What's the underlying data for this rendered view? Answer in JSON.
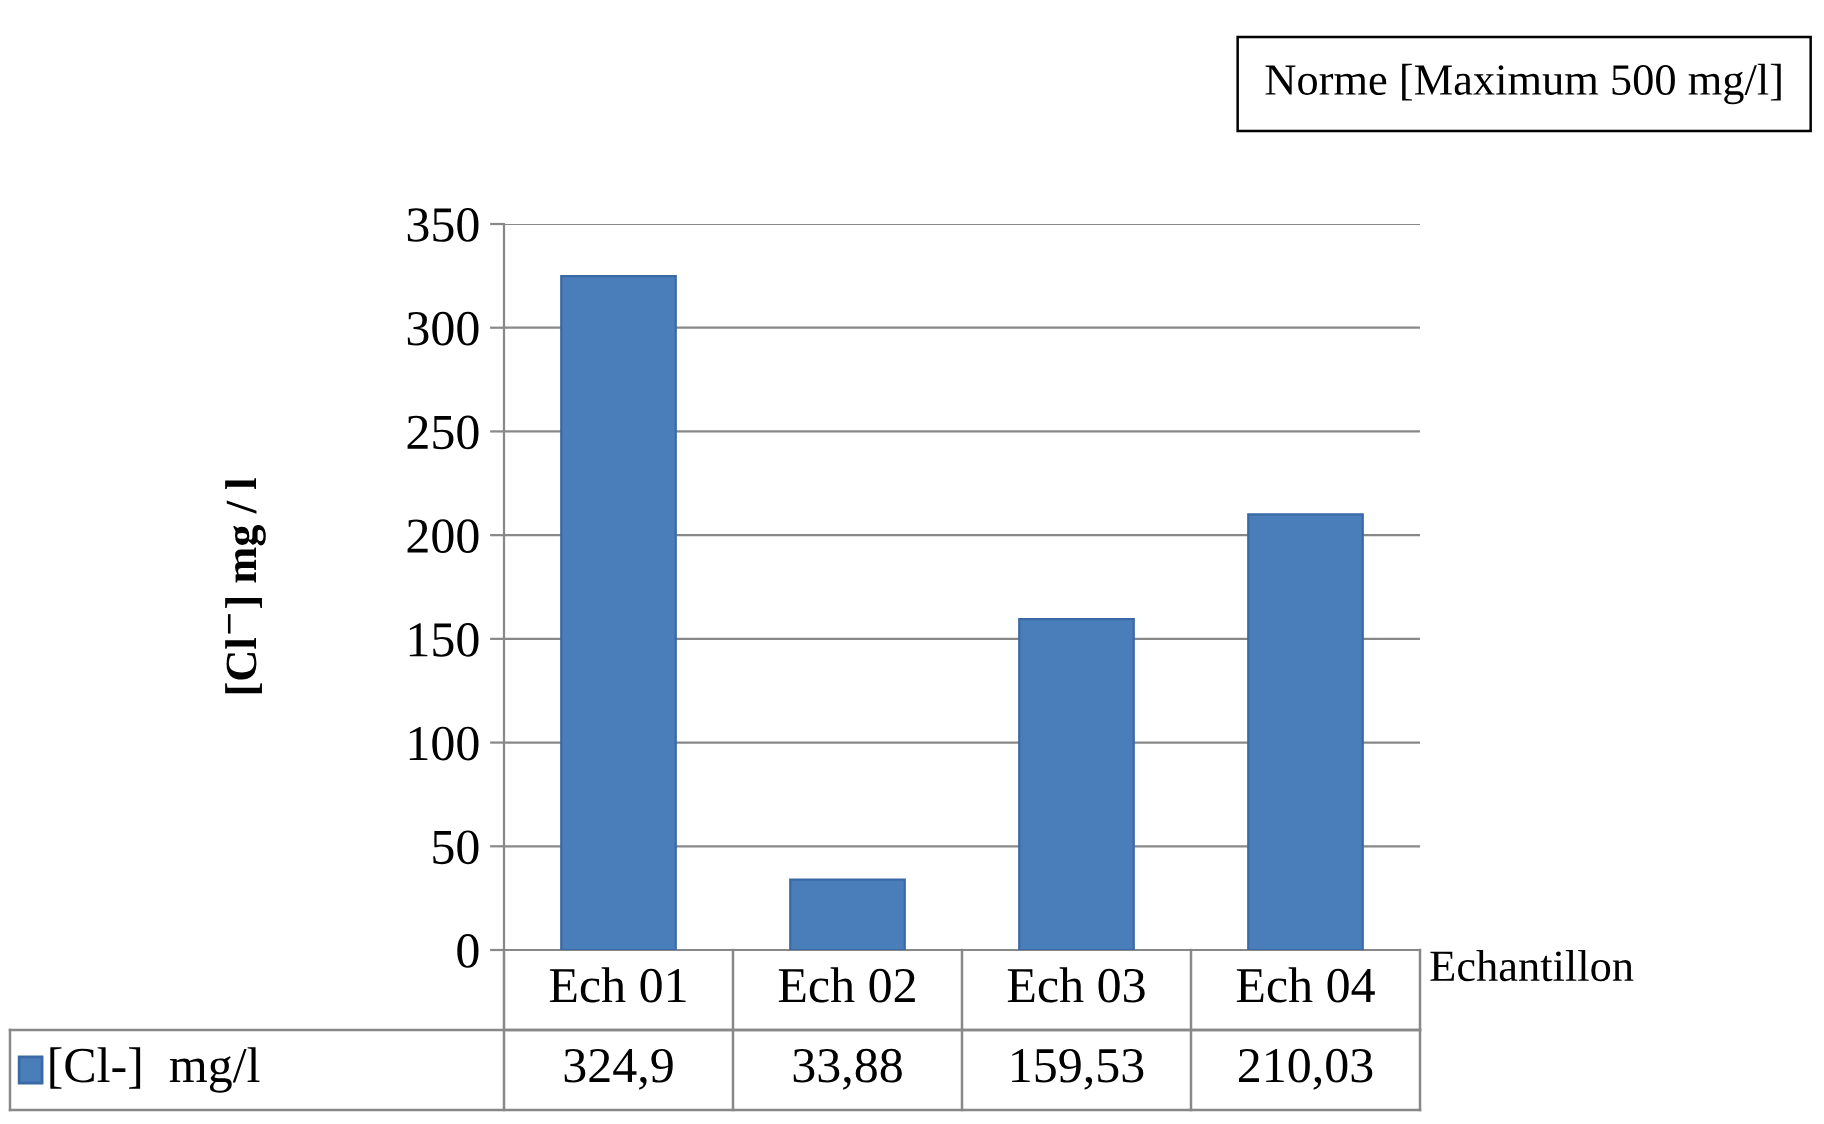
{
  "chart_data": {
    "type": "bar",
    "ylabel": "[Cl$^{−}$] mg / l",
    "xlabel": "Echantillon",
    "categories": [
      "Ech 01",
      "Ech 02",
      "Ech 03",
      "Ech 04"
    ],
    "series": [
      {
        "name": "[Cl-]  mg/l",
        "color": "#4a7ebb",
        "values": [
          324.9,
          33.88,
          159.53,
          210.03
        ],
        "value_labels": [
          "324,9",
          "33,88",
          "159,53",
          "210,03"
        ]
      }
    ],
    "ylim": [
      0,
      350
    ],
    "yticks": [
      0,
      50,
      100,
      150,
      200,
      250,
      300,
      350
    ],
    "grid": "y",
    "legend": "bottom",
    "annotations": [
      "Norme [Maximum 500 mg/l]"
    ]
  }
}
